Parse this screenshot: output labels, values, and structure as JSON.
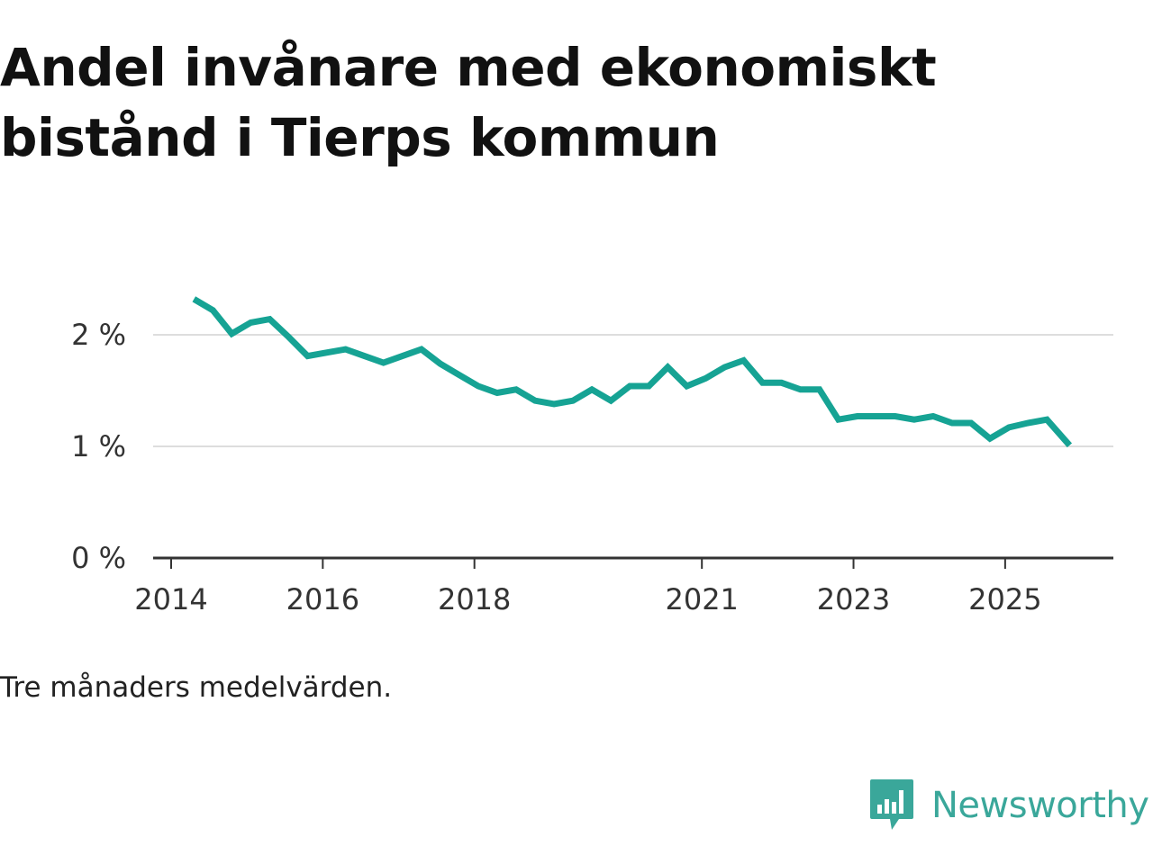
{
  "title": "Andel invånare med ekonomiskt bistånd i Tierps kommun",
  "note": "Tre månaders medelvärden.",
  "brand": {
    "name": "Newsworthy",
    "icon": "newsworthy-logo-icon",
    "color": "#3aa79a"
  },
  "colors": {
    "line": "#16a394",
    "grid": "#dddddd",
    "axis": "#333333"
  },
  "chart_data": {
    "type": "line",
    "title": "Andel invånare med ekonomiskt bistånd i Tierps kommun",
    "xlabel": "",
    "ylabel": "",
    "xlim": [
      2014,
      2026.7
    ],
    "ylim": [
      0,
      2.5
    ],
    "grid": true,
    "y_ticks": [
      {
        "value": 0,
        "label": "0 %"
      },
      {
        "value": 1,
        "label": "1 %"
      },
      {
        "value": 2,
        "label": "2 %"
      }
    ],
    "x_ticks": [
      {
        "value": 2014,
        "label": "2014"
      },
      {
        "value": 2016,
        "label": "2016"
      },
      {
        "value": 2018,
        "label": "2018"
      },
      {
        "value": 2021,
        "label": "2021"
      },
      {
        "value": 2023,
        "label": "2023"
      },
      {
        "value": 2025,
        "label": "2025"
      }
    ],
    "series": [
      {
        "name": "Andel invånare med ekonomiskt bistånd",
        "x": [
          2014.3,
          2014.55,
          2014.8,
          2015.05,
          2015.3,
          2015.55,
          2015.8,
          2016.05,
          2016.3,
          2016.55,
          2016.8,
          2017.05,
          2017.3,
          2017.55,
          2017.8,
          2018.05,
          2018.3,
          2018.55,
          2018.8,
          2019.05,
          2019.3,
          2019.55,
          2019.8,
          2020.05,
          2020.3,
          2020.55,
          2020.8,
          2021.05,
          2021.3,
          2021.55,
          2021.8,
          2022.05,
          2022.3,
          2022.55,
          2022.8,
          2023.05,
          2023.3,
          2023.55,
          2023.8,
          2024.05,
          2024.3,
          2024.55,
          2024.8,
          2025.05,
          2025.3,
          2025.55,
          2025.85
        ],
        "values": [
          2.32,
          2.22,
          2.01,
          2.11,
          2.14,
          1.98,
          1.81,
          1.84,
          1.87,
          1.81,
          1.75,
          1.81,
          1.87,
          1.74,
          1.64,
          1.54,
          1.48,
          1.51,
          1.41,
          1.38,
          1.41,
          1.51,
          1.41,
          1.54,
          1.54,
          1.71,
          1.54,
          1.61,
          1.71,
          1.77,
          1.57,
          1.57,
          1.51,
          1.51,
          1.24,
          1.27,
          1.27,
          1.27,
          1.24,
          1.27,
          1.21,
          1.21,
          1.07,
          1.17,
          1.21,
          1.24,
          1.01
        ]
      }
    ]
  }
}
